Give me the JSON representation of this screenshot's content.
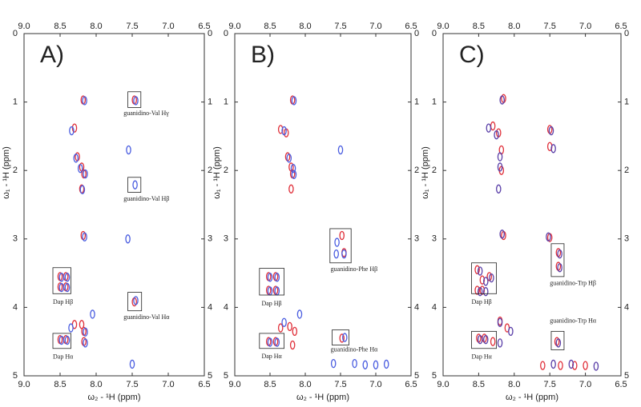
{
  "chart_data": [
    {
      "type": "scatter",
      "title": "A)",
      "x_label": "ω₂ - ¹H (ppm)",
      "y_label": "ω₁ - ¹H (ppm)",
      "xlim": [
        9,
        6.5
      ],
      "ylim": [
        0,
        5
      ],
      "y_reversed": true,
      "xticks": [
        {
          "value": 9,
          "label": "9.0"
        },
        8.5,
        {
          "value": 8,
          "label": "8.0"
        },
        7.5,
        {
          "value": 7,
          "label": "7.0"
        },
        6.5
      ],
      "yticks": [
        0,
        1,
        2,
        3,
        4,
        5
      ],
      "series": [
        {
          "color": "#e0303a",
          "x": [
            8.18,
            8.3,
            8.26,
            8.2,
            8.17,
            8.2,
            7.47,
            8.18,
            8.5,
            8.5,
            8.42,
            8.42,
            7.47,
            8.3,
            8.2,
            8.17,
            8.5,
            8.42,
            8.17
          ],
          "y": [
            0.97,
            1.38,
            1.8,
            1.95,
            2.05,
            2.27,
            0.97,
            2.95,
            3.55,
            3.7,
            3.55,
            3.7,
            3.92,
            4.25,
            4.25,
            4.35,
            4.47,
            4.47,
            4.5
          ]
        },
        {
          "color": "#4a5de0",
          "x": [
            8.16,
            8.34,
            8.28,
            7.55,
            8.22,
            8.15,
            8.19,
            7.45,
            7.46,
            8.16,
            7.56,
            8.48,
            8.48,
            8.4,
            8.4,
            7.45,
            8.35,
            8.05,
            8.15,
            8.48,
            8.4,
            8.15,
            7.5
          ],
          "y": [
            0.98,
            1.42,
            1.82,
            1.7,
            1.97,
            2.05,
            2.28,
            0.98,
            2.21,
            2.97,
            3.0,
            3.56,
            3.71,
            3.56,
            3.71,
            3.9,
            4.3,
            4.1,
            4.36,
            4.48,
            4.48,
            4.52,
            4.83
          ]
        }
      ],
      "annotations": [
        {
          "text": "guanidino-Val Hγ",
          "x": 7.62,
          "y": 1.17,
          "box": [
            7.56,
            7.38,
            0.85,
            1.08
          ]
        },
        {
          "text": "guanidino-Val Hβ",
          "x": 7.62,
          "y": 2.42,
          "box": [
            7.56,
            7.38,
            2.1,
            2.32
          ]
        },
        {
          "text": "guanidino-Val Hα",
          "x": 7.62,
          "y": 4.15,
          "box": [
            7.56,
            7.37,
            3.78,
            4.05
          ]
        },
        {
          "text": "Dap Hβ",
          "x": 8.6,
          "y": 3.93,
          "box": [
            8.6,
            8.35,
            3.42,
            3.8
          ]
        },
        {
          "text": "Dap Hα",
          "x": 8.6,
          "y": 4.73,
          "box": [
            8.6,
            8.35,
            4.38,
            4.6
          ]
        }
      ]
    },
    {
      "type": "scatter",
      "title": "B)",
      "x_label": "ω₂ - ¹H (ppm)",
      "y_label": "ω₁ - ¹H (ppm)",
      "xlim": [
        9,
        6.5
      ],
      "ylim": [
        0,
        5
      ],
      "y_reversed": true,
      "xticks": [
        {
          "value": 9,
          "label": "9.0"
        },
        8.5,
        {
          "value": 8,
          "label": "8.0"
        },
        7.5,
        {
          "value": 7,
          "label": "7.0"
        },
        6.5
      ],
      "yticks": [
        0,
        1,
        2,
        3,
        4,
        5
      ],
      "series": [
        {
          "color": "#e0303a",
          "x": [
            8.18,
            8.35,
            8.27,
            8.25,
            8.2,
            8.18,
            8.2,
            7.48,
            7.45,
            8.52,
            8.52,
            8.42,
            8.42,
            7.48,
            8.35,
            8.22,
            8.15,
            8.52,
            8.42,
            8.18
          ],
          "y": [
            0.97,
            1.4,
            1.45,
            1.8,
            1.95,
            2.05,
            2.27,
            2.95,
            3.2,
            3.55,
            3.75,
            3.55,
            3.75,
            4.45,
            4.3,
            4.28,
            4.35,
            4.5,
            4.5,
            4.55
          ]
        },
        {
          "color": "#4a5de0",
          "x": [
            8.16,
            8.3,
            7.5,
            8.23,
            8.17,
            8.16,
            7.55,
            7.45,
            7.56,
            8.5,
            8.5,
            8.4,
            8.4,
            7.44,
            8.3,
            8.08,
            8.5,
            8.4,
            7.6,
            7.3,
            7.15,
            7.0,
            6.85
          ],
          "y": [
            0.98,
            1.42,
            1.7,
            1.82,
            1.97,
            2.06,
            3.05,
            3.22,
            3.22,
            3.56,
            3.76,
            3.56,
            3.76,
            4.44,
            4.22,
            4.1,
            4.51,
            4.51,
            4.82,
            4.82,
            4.84,
            4.84,
            4.83
          ]
        }
      ],
      "annotations": [
        {
          "text": "guanidino-Phe Hβ",
          "x": 7.64,
          "y": 3.45,
          "box": [
            7.65,
            7.35,
            2.85,
            3.35
          ]
        },
        {
          "text": "guanidino-Phe Hα",
          "x": 7.64,
          "y": 4.62,
          "box": [
            7.62,
            7.38,
            4.33,
            4.55
          ]
        },
        {
          "text": "Dap Hβ",
          "x": 8.62,
          "y": 3.95,
          "box": [
            8.65,
            8.3,
            3.43,
            3.82
          ]
        },
        {
          "text": "Dap Hα",
          "x": 8.62,
          "y": 4.72,
          "box": [
            8.65,
            8.3,
            4.38,
            4.6
          ]
        }
      ]
    },
    {
      "type": "scatter",
      "title": "C)",
      "x_label": "ω₂ - ¹H (ppm)",
      "y_label": "ω₁ - ¹H (ppm)",
      "xlim": [
        9,
        6.5
      ],
      "ylim": [
        0,
        5
      ],
      "y_reversed": true,
      "xticks": [
        {
          "value": 9,
          "label": "9.0"
        },
        8.5,
        {
          "value": 8,
          "label": "8.0"
        },
        7.5,
        {
          "value": 7,
          "label": "7.0"
        },
        6.5
      ],
      "yticks": [
        0,
        1,
        2,
        3,
        4,
        5
      ],
      "series": [
        {
          "color": "#e0303a",
          "x": [
            8.15,
            8.3,
            8.22,
            7.5,
            8.18,
            8.18,
            7.5,
            8.15,
            7.5,
            7.38,
            7.38,
            8.52,
            8.45,
            8.35,
            8.52,
            8.45,
            8.2,
            8.1,
            8.5,
            8.42,
            8.3,
            7.4,
            7.6,
            7.35,
            7.15,
            7.0
          ],
          "y": [
            0.95,
            1.35,
            1.45,
            1.4,
            1.7,
            2.0,
            1.65,
            2.95,
            2.98,
            3.2,
            3.4,
            3.45,
            3.6,
            3.55,
            3.75,
            3.75,
            4.2,
            4.3,
            4.45,
            4.45,
            4.5,
            4.5,
            4.85,
            4.85,
            4.85,
            4.85
          ]
        },
        {
          "color": "#5a3fa8",
          "x": [
            8.17,
            8.36,
            8.25,
            7.48,
            8.2,
            8.2,
            8.22,
            7.45,
            8.17,
            7.52,
            7.36,
            7.36,
            8.48,
            8.4,
            8.32,
            8.48,
            8.4,
            8.2,
            8.05,
            8.48,
            8.4,
            8.2,
            7.38,
            7.45,
            7.2,
            6.85
          ],
          "y": [
            0.97,
            1.38,
            1.48,
            1.42,
            1.8,
            1.95,
            2.27,
            1.68,
            2.93,
            2.97,
            3.22,
            3.42,
            3.47,
            3.62,
            3.57,
            3.77,
            3.77,
            4.22,
            4.35,
            4.47,
            4.47,
            4.52,
            4.52,
            4.83,
            4.83,
            4.86
          ]
        }
      ],
      "annotations": [
        {
          "text": "guanidino-Trp Hβ",
          "x": 7.5,
          "y": 3.65,
          "box": [
            7.48,
            7.3,
            3.07,
            3.55
          ]
        },
        {
          "text": "guanidino-Trp Hα",
          "x": 7.5,
          "y": 4.2,
          "box": [
            7.48,
            7.3,
            4.35,
            4.62
          ]
        },
        {
          "text": "Dap Hβ",
          "x": 8.6,
          "y": 3.93,
          "box": [
            8.6,
            8.25,
            3.35,
            3.8
          ]
        },
        {
          "text": "Dap Hα",
          "x": 8.6,
          "y": 4.73,
          "box": [
            8.6,
            8.25,
            4.35,
            4.6
          ]
        }
      ]
    }
  ]
}
